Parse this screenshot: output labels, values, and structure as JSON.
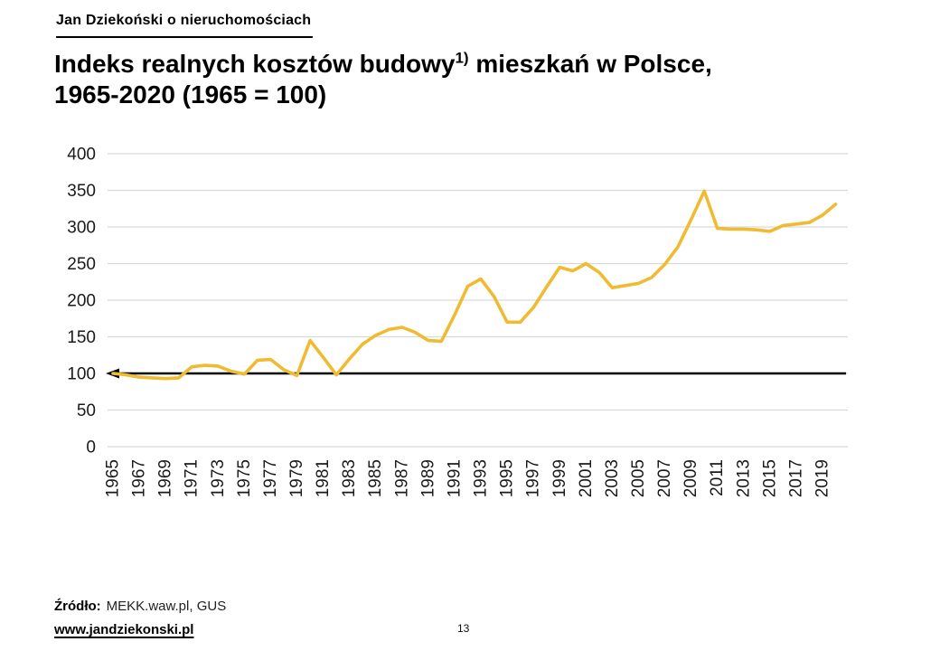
{
  "header": {
    "brand": "Jan Dziekoński o nieruchomościach"
  },
  "title": {
    "part1": "Indeks realnych kosztów budowy",
    "sup": "1)",
    "part2": " mieszkań w Polsce,",
    "line2": "1965-2020 (1965 = 100)"
  },
  "footer": {
    "source_label": "Źródło:",
    "source_value": "MEKK.waw.pl, GUS",
    "website": "www.jandziekonski.pl",
    "page_number": "13"
  },
  "chart_data": {
    "type": "line",
    "title": "Indeks realnych kosztów budowy mieszkań w Polsce, 1965-2020 (1965 = 100)",
    "x": [
      1965,
      1966,
      1967,
      1968,
      1969,
      1970,
      1971,
      1972,
      1973,
      1974,
      1975,
      1976,
      1977,
      1978,
      1979,
      1980,
      1981,
      1982,
      1983,
      1984,
      1985,
      1986,
      1987,
      1988,
      1989,
      1990,
      1991,
      1992,
      1993,
      1994,
      1995,
      1996,
      1997,
      1998,
      1999,
      2000,
      2001,
      2002,
      2003,
      2004,
      2005,
      2006,
      2007,
      2008,
      2009,
      2010,
      2011,
      2012,
      2013,
      2014,
      2015,
      2016,
      2017,
      2018,
      2019,
      2020
    ],
    "series": [
      {
        "name": "Indeks realnych kosztów budowy (1965 = 100)",
        "values": [
          100,
          98,
          95,
          94,
          93,
          94,
          109,
          111,
          110,
          103,
          99,
          118,
          119,
          105,
          97,
          145,
          122,
          98,
          120,
          140,
          152,
          160,
          163,
          156,
          145,
          144,
          180,
          219,
          229,
          205,
          170,
          170,
          190,
          218,
          245,
          240,
          250,
          238,
          217,
          220,
          223,
          231,
          249,
          273,
          310,
          349,
          298,
          297,
          297,
          296,
          294,
          302,
          304,
          306,
          316,
          331
        ]
      }
    ],
    "baseline": {
      "value": 100,
      "style": "black-arrow-pointing-left"
    },
    "ylim": [
      0,
      400
    ],
    "ytick_step": 50,
    "yticks": [
      0,
      50,
      100,
      150,
      200,
      250,
      300,
      350,
      400
    ],
    "xtick_labels": [
      "1965",
      "1967",
      "1969",
      "1971",
      "1973",
      "1975",
      "1977",
      "1979",
      "1981",
      "1983",
      "1985",
      "1987",
      "1989",
      "1991",
      "1993",
      "1995",
      "1997",
      "1999",
      "2001",
      "2003",
      "2005",
      "2007",
      "2009",
      "2011",
      "2013",
      "2015",
      "2017",
      "2019"
    ],
    "grid": "horizontal",
    "legend": "none",
    "colors": {
      "line": "#EFBB33",
      "gridline": "#D9D9D9",
      "baseline": "#000000",
      "axis_text": "#1a1a1a"
    }
  }
}
